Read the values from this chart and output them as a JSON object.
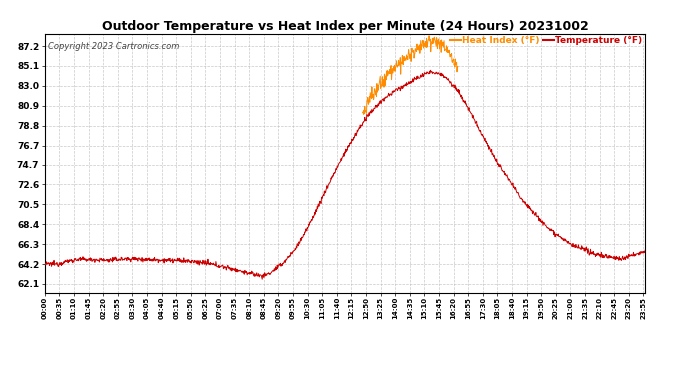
{
  "title": "Outdoor Temperature vs Heat Index per Minute (24 Hours) 20231002",
  "copyright": "Copyright 2023 Cartronics.com",
  "legend_heat": "Heat Index (°F)",
  "legend_temp": "Temperature (°F)",
  "heat_color": "#FF8C00",
  "temp_color": "#CC0000",
  "night_color": "#1a1a1a",
  "copyright_color": "#444444",
  "background_color": "#ffffff",
  "grid_color": "#bbbbbb",
  "yticks": [
    62.1,
    64.2,
    66.3,
    68.4,
    70.5,
    72.6,
    74.7,
    76.7,
    78.8,
    80.9,
    83.0,
    85.1,
    87.2
  ],
  "ylim": [
    61.2,
    88.5
  ],
  "total_minutes": 1440,
  "xtick_interval": 35
}
